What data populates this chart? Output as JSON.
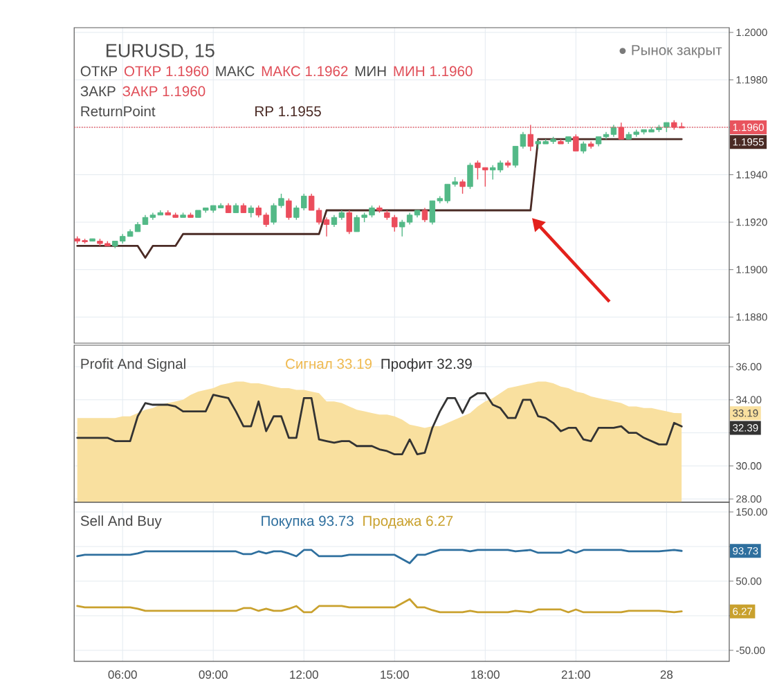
{
  "chart_data": [
    {
      "type": "candlestick",
      "title": "EURUSD, 15",
      "categories": [
        null,
        null,
        null,
        null,
        null,
        null,
        null,
        null,
        null,
        null,
        null,
        null,
        null,
        null,
        null,
        null,
        null,
        null,
        null,
        null,
        null,
        null,
        null,
        null,
        null,
        null,
        null,
        null,
        null,
        null,
        null,
        null,
        null,
        null,
        null,
        null,
        null,
        null,
        null,
        null,
        null,
        null,
        null,
        null,
        null,
        null,
        null,
        null,
        null,
        null,
        null,
        null,
        null,
        null,
        null,
        null,
        null,
        null,
        null,
        null,
        null,
        null,
        null,
        null,
        null,
        null,
        null,
        null,
        null,
        null,
        null,
        null,
        null,
        null,
        null,
        null,
        null,
        null,
        null,
        null,
        null
      ],
      "ohlc": [
        [
          1.1913,
          1.1914,
          1.1911,
          1.1912
        ],
        [
          1.1912,
          1.1913,
          1.1911,
          1.1912
        ],
        [
          1.1912,
          1.1913,
          1.1912,
          1.1913
        ],
        [
          1.1912,
          1.1913,
          1.191,
          1.1911
        ],
        [
          1.1911,
          1.1912,
          1.191,
          1.191
        ],
        [
          1.191,
          1.1912,
          1.1909,
          1.1912
        ],
        [
          1.1912,
          1.1915,
          1.1911,
          1.1914
        ],
        [
          1.1914,
          1.1917,
          1.1914,
          1.1916
        ],
        [
          1.1916,
          1.192,
          1.1916,
          1.1919
        ],
        [
          1.1919,
          1.1923,
          1.1919,
          1.1922
        ],
        [
          1.1922,
          1.1924,
          1.1921,
          1.1923
        ],
        [
          1.1923,
          1.1925,
          1.1923,
          1.1924
        ],
        [
          1.1924,
          1.1925,
          1.1923,
          1.1923
        ],
        [
          1.1923,
          1.1924,
          1.1922,
          1.1922
        ],
        [
          1.1922,
          1.1924,
          1.1922,
          1.1923
        ],
        [
          1.1923,
          1.1924,
          1.1922,
          1.1922
        ],
        [
          1.1922,
          1.1925,
          1.1922,
          1.1925
        ],
        [
          1.1925,
          1.1926,
          1.1924,
          1.1926
        ],
        [
          1.1925,
          1.1927,
          1.1924,
          1.1927
        ],
        [
          1.1926,
          1.1928,
          1.1926,
          1.1927
        ],
        [
          1.1927,
          1.1928,
          1.1924,
          1.1924
        ],
        [
          1.1924,
          1.1928,
          1.1924,
          1.1927
        ],
        [
          1.1927,
          1.1928,
          1.1924,
          1.1924
        ],
        [
          1.1924,
          1.1927,
          1.1922,
          1.1926
        ],
        [
          1.1926,
          1.1927,
          1.1922,
          1.1923
        ],
        [
          1.1923,
          1.1924,
          1.1918,
          1.1919
        ],
        [
          1.192,
          1.1928,
          1.1919,
          1.1927
        ],
        [
          1.1927,
          1.1932,
          1.1926,
          1.193
        ],
        [
          1.1929,
          1.193,
          1.1921,
          1.1922
        ],
        [
          1.1922,
          1.1927,
          1.1921,
          1.1926
        ],
        [
          1.1926,
          1.1932,
          1.1925,
          1.1931
        ],
        [
          1.1931,
          1.1932,
          1.1925,
          1.1925
        ],
        [
          1.1925,
          1.1926,
          1.1919,
          1.192
        ],
        [
          1.1921,
          1.1922,
          1.1914,
          1.1919
        ],
        [
          1.1919,
          1.1923,
          1.1918,
          1.1922
        ],
        [
          1.1922,
          1.1925,
          1.1921,
          1.1924
        ],
        [
          1.1924,
          1.1925,
          1.1915,
          1.1916
        ],
        [
          1.1916,
          1.1923,
          1.1916,
          1.1922
        ],
        [
          1.1922,
          1.1924,
          1.192,
          1.1923
        ],
        [
          1.1923,
          1.1927,
          1.1922,
          1.1926
        ],
        [
          1.1926,
          1.1927,
          1.1924,
          1.1925
        ],
        [
          1.1924,
          1.1925,
          1.1921,
          1.1922
        ],
        [
          1.1922,
          1.1923,
          1.1916,
          1.1918
        ],
        [
          1.1918,
          1.1921,
          1.1914,
          1.192
        ],
        [
          1.192,
          1.1924,
          1.1919,
          1.1923
        ],
        [
          1.1923,
          1.1925,
          1.1922,
          1.1925
        ],
        [
          1.1925,
          1.1926,
          1.192,
          1.1921
        ],
        [
          1.192,
          1.1929,
          1.1919,
          1.1929
        ],
        [
          1.1929,
          1.1931,
          1.1928,
          1.193
        ],
        [
          1.1929,
          1.1936,
          1.1928,
          1.1936
        ],
        [
          1.1936,
          1.1939,
          1.1935,
          1.1937
        ],
        [
          1.1937,
          1.1938,
          1.1932,
          1.1935
        ],
        [
          1.1935,
          1.1945,
          1.1934,
          1.1944
        ],
        [
          1.1945,
          1.1946,
          1.1938,
          1.1943
        ],
        [
          1.1943,
          1.1943,
          1.1935,
          1.1942
        ],
        [
          1.1942,
          1.1944,
          1.1938,
          1.1943
        ],
        [
          1.1942,
          1.1946,
          1.1941,
          1.1945
        ],
        [
          1.1945,
          1.1946,
          1.1943,
          1.1944
        ],
        [
          1.1944,
          1.1952,
          1.1943,
          1.1952
        ],
        [
          1.1952,
          1.1958,
          1.1951,
          1.1957
        ],
        [
          1.1957,
          1.1961,
          1.195,
          1.1952
        ],
        [
          1.1953,
          1.1955,
          1.1951,
          1.1954
        ],
        [
          1.1953,
          1.1955,
          1.1953,
          1.1954
        ],
        [
          1.1954,
          1.1956,
          1.1953,
          1.1955
        ],
        [
          1.1954,
          1.1955,
          1.1953,
          1.1953
        ],
        [
          1.1954,
          1.1956,
          1.1953,
          1.1956
        ],
        [
          1.1956,
          1.1957,
          1.195,
          1.195
        ],
        [
          1.195,
          1.1954,
          1.1949,
          1.1953
        ],
        [
          1.1953,
          1.1954,
          1.1951,
          1.1952
        ],
        [
          1.1953,
          1.1956,
          1.1952,
          1.1956
        ],
        [
          1.1956,
          1.1958,
          1.1955,
          1.1957
        ],
        [
          1.1957,
          1.1961,
          1.1956,
          1.196
        ],
        [
          1.196,
          1.1962,
          1.1955,
          1.1955
        ],
        [
          1.1955,
          1.1958,
          1.1955,
          1.1957
        ],
        [
          1.1957,
          1.1959,
          1.1956,
          1.1958
        ],
        [
          1.1958,
          1.1959,
          1.1957,
          1.1959
        ],
        [
          1.1958,
          1.196,
          1.1958,
          1.1959
        ],
        [
          1.1959,
          1.1961,
          1.1958,
          1.196
        ],
        [
          1.196,
          1.1962,
          1.1958,
          1.1962
        ],
        [
          1.1962,
          1.1963,
          1.1959,
          1.196
        ],
        [
          1.196,
          1.1962,
          1.196,
          1.196
        ]
      ],
      "colors": [
        "#eb4d5c",
        "#eb4d5c",
        "#53b987",
        "#eb4d5c",
        "#eb4d5c",
        "#53b987",
        "#53b987",
        "#53b987",
        "#53b987",
        "#53b987",
        "#53b987",
        "#53b987",
        "#eb4d5c",
        "#eb4d5c",
        "#53b987",
        "#eb4d5c",
        "#53b987",
        "#53b987",
        "#53b987",
        "#53b987",
        "#eb4d5c",
        "#53b987",
        "#eb4d5c",
        "#53b987",
        "#eb4d5c",
        "#eb4d5c",
        "#53b987",
        "#53b987",
        "#eb4d5c",
        "#53b987",
        "#53b987",
        "#eb4d5c",
        "#eb4d5c",
        "#eb4d5c",
        "#53b987",
        "#53b987",
        "#eb4d5c",
        "#53b987",
        "#53b987",
        "#53b987",
        "#eb4d5c",
        "#eb4d5c",
        "#eb4d5c",
        "#53b987",
        "#53b987",
        "#53b987",
        "#eb4d5c",
        "#53b987",
        "#53b987",
        "#53b987",
        "#53b987",
        "#eb4d5c",
        "#53b987",
        "#eb4d5c",
        "#eb4d5c",
        "#53b987",
        "#53b987",
        "#eb4d5c",
        "#53b987",
        "#53b987",
        "#eb4d5c",
        "#53b987",
        "#53b987",
        "#53b987",
        "#eb4d5c",
        "#53b987",
        "#eb4d5c",
        "#53b987",
        "#eb4d5c",
        "#53b987",
        "#53b987",
        "#53b987",
        "#eb4d5c",
        "#53b987",
        "#53b987",
        "#53b987",
        "#53b987",
        "#53b987",
        "#53b987",
        "#eb4d5c",
        "#eb4d5c"
      ],
      "series": [
        {
          "type": "line",
          "name": "RP 1.1955",
          "color": "#4a2a24",
          "values": [
            1.191,
            1.191,
            1.191,
            1.191,
            1.191,
            1.191,
            1.191,
            1.191,
            1.191,
            1.1905,
            1.191,
            1.191,
            1.191,
            1.191,
            1.1915,
            1.1915,
            1.1915,
            1.1915,
            1.1915,
            1.1915,
            1.1915,
            1.1915,
            1.1915,
            1.1915,
            1.1915,
            1.1915,
            1.1915,
            1.1915,
            1.1915,
            1.1915,
            1.1915,
            1.1915,
            1.1915,
            1.1925,
            1.1925,
            1.1925,
            1.1925,
            1.1925,
            1.1925,
            1.1925,
            1.1925,
            1.1925,
            1.1925,
            1.1925,
            1.1925,
            1.1925,
            1.1925,
            1.1925,
            1.1925,
            1.1925,
            1.1925,
            1.1925,
            1.1925,
            1.1925,
            1.1925,
            1.1925,
            1.1925,
            1.1925,
            1.1925,
            1.1925,
            1.1925,
            1.1955,
            1.1955,
            1.1955,
            1.1955,
            1.1955,
            1.1955,
            1.1955,
            1.1955,
            1.1955,
            1.1955,
            1.1955,
            1.1955,
            1.1955,
            1.1955,
            1.1955,
            1.1955,
            1.1955,
            1.1955,
            1.1955,
            1.1955
          ]
        }
      ],
      "ylim": [
        1.1869,
        1.2002
      ],
      "yticks": [
        {
          "value": 1.188,
          "label": "1.1880"
        },
        {
          "value": 1.19,
          "label": "1.1900"
        },
        {
          "value": 1.192,
          "label": "1.1920"
        },
        {
          "value": 1.194,
          "label": "1.1940"
        },
        {
          "value": 1.196,
          "label": null
        },
        {
          "value": 1.198,
          "label": "1.1980"
        },
        {
          "value": 1.2,
          "label": "1.2000"
        }
      ],
      "grid": true,
      "legend": "top left",
      "ref_lines": [
        {
          "axis": "y",
          "value": 1.196,
          "color": "#e8545e",
          "line_style": "dotted"
        }
      ],
      "annotations": [
        "● Рынок закрыт",
        "ОТКР",
        "ОТКР 1.1960",
        "МАКС",
        "МАКС 1.1962",
        "МИН",
        "МИН 1.1960",
        "ЗАКР",
        "ЗАКР 1.1960",
        "ReturnPoint",
        "1.1960",
        "1.1955"
      ]
    },
    {
      "type": "line",
      "title": "Profit And Signal",
      "categories": [
        null,
        null,
        null,
        null,
        null,
        null,
        null,
        null,
        null,
        null,
        null,
        null,
        null,
        null,
        null,
        null,
        null,
        null,
        null,
        null,
        null,
        null,
        null,
        null,
        null,
        null,
        null,
        null,
        null,
        null,
        null,
        null,
        null,
        null,
        null,
        null,
        null,
        null,
        null,
        null,
        null,
        null,
        null,
        null,
        null,
        null,
        null,
        null,
        null,
        null,
        null,
        null,
        null,
        null,
        null,
        null,
        null,
        null,
        null,
        null,
        null,
        null,
        null,
        null,
        null,
        null,
        null,
        null,
        null,
        null,
        null,
        null,
        null,
        null,
        null,
        null,
        null,
        null,
        null,
        null,
        null
      ],
      "series": [
        {
          "type": "area",
          "name": "Сигнал 33.19",
          "color": "#f9e09f",
          "values": [
            32.9,
            32.9,
            32.9,
            32.9,
            32.9,
            32.9,
            33.0,
            33.0,
            33.2,
            33.4,
            33.5,
            33.7,
            33.8,
            33.9,
            34.0,
            34.3,
            34.5,
            34.6,
            34.7,
            34.9,
            35.0,
            35.1,
            35.1,
            35.0,
            35.0,
            34.9,
            34.8,
            34.7,
            34.7,
            34.6,
            34.6,
            34.5,
            34.4,
            33.9,
            33.9,
            33.8,
            33.6,
            33.4,
            33.3,
            33.2,
            33.1,
            33.1,
            33.0,
            32.8,
            32.5,
            32.4,
            32.3,
            32.4,
            32.4,
            32.6,
            32.8,
            33.0,
            33.2,
            33.6,
            33.9,
            34.1,
            34.4,
            34.7,
            34.8,
            34.9,
            35.0,
            35.1,
            35.1,
            35.0,
            34.8,
            34.7,
            34.5,
            34.4,
            34.2,
            34.1,
            34.0,
            33.9,
            33.8,
            33.6,
            33.6,
            33.5,
            33.5,
            33.4,
            33.3,
            33.2,
            33.19
          ]
        },
        {
          "type": "line",
          "name": "Профит 32.39",
          "color": "#333333",
          "values": [
            31.7,
            31.7,
            31.7,
            31.7,
            31.7,
            31.5,
            31.5,
            31.5,
            33.0,
            33.8,
            33.7,
            33.7,
            33.7,
            33.6,
            33.3,
            33.3,
            33.3,
            33.3,
            34.3,
            34.2,
            34.1,
            33.3,
            32.4,
            32.4,
            33.9,
            32.1,
            33.0,
            33.0,
            31.7,
            31.7,
            34.1,
            34.1,
            31.6,
            31.5,
            31.4,
            31.5,
            31.5,
            31.2,
            31.2,
            31.2,
            31.0,
            30.9,
            30.7,
            30.7,
            31.6,
            30.7,
            30.8,
            32.3,
            33.3,
            34.1,
            34.1,
            33.2,
            34.1,
            34.4,
            34.4,
            33.7,
            33.5,
            32.9,
            32.9,
            34.0,
            34.0,
            33.0,
            32.9,
            32.6,
            32.1,
            32.3,
            32.3,
            31.6,
            31.5,
            32.3,
            32.3,
            32.3,
            32.4,
            32.0,
            32.0,
            31.7,
            31.5,
            31.3,
            31.3,
            32.6,
            32.39
          ]
        }
      ],
      "ylim": [
        27.8,
        37.3
      ],
      "yticks": [
        {
          "value": 28,
          "label": "28.00"
        },
        {
          "value": 30,
          "label": "30.00"
        },
        {
          "value": 32,
          "label": null
        },
        {
          "value": 34,
          "label": "34.00"
        },
        {
          "value": 36,
          "label": "36.00"
        }
      ],
      "grid": true,
      "legend": "top left",
      "annotations": [
        "33.19",
        "32.39"
      ]
    },
    {
      "type": "line",
      "title": "Sell And Buy",
      "categories": [
        null,
        null,
        null,
        null,
        null,
        null,
        "06:00",
        null,
        null,
        null,
        null,
        null,
        null,
        null,
        null,
        null,
        null,
        null,
        "09:00",
        null,
        null,
        null,
        null,
        null,
        null,
        null,
        null,
        null,
        null,
        null,
        "12:00",
        null,
        null,
        null,
        null,
        null,
        null,
        null,
        null,
        null,
        null,
        null,
        "15:00",
        null,
        null,
        null,
        null,
        null,
        null,
        null,
        null,
        null,
        null,
        null,
        "18:00",
        null,
        null,
        null,
        null,
        null,
        null,
        null,
        null,
        null,
        null,
        null,
        "21:00",
        null,
        null,
        null,
        null,
        null,
        null,
        null,
        null,
        null,
        null,
        null,
        "28",
        null,
        null
      ],
      "series": [
        {
          "name": "Покупка 93.73",
          "color": "#2e6f9e",
          "values": [
            86,
            88,
            88,
            88,
            88,
            88,
            88,
            88,
            90,
            93,
            93,
            93,
            93,
            93,
            93,
            93,
            93,
            93,
            93,
            93,
            93,
            93,
            89,
            89,
            93,
            90,
            93,
            93,
            90,
            86,
            95,
            95,
            86,
            86,
            86,
            86,
            88,
            88,
            88,
            88,
            88,
            88,
            88,
            82,
            76,
            88,
            88,
            92,
            95,
            95,
            95,
            95,
            93,
            95,
            95,
            95,
            95,
            95,
            93,
            94,
            95,
            91,
            91,
            91,
            91,
            95,
            91,
            95,
            95,
            95,
            95,
            95,
            95,
            93,
            93,
            93,
            93,
            93,
            94,
            95,
            93.73
          ]
        },
        {
          "name": "Продажа 6.27",
          "color": "#c9a12e",
          "values": [
            14,
            12,
            12,
            12,
            12,
            12,
            12,
            12,
            10,
            7,
            7,
            7,
            7,
            7,
            7,
            7,
            7,
            7,
            7,
            7,
            7,
            7,
            11,
            11,
            7,
            10,
            7,
            7,
            10,
            14,
            5,
            5,
            14,
            14,
            14,
            14,
            12,
            12,
            12,
            12,
            12,
            12,
            12,
            18,
            24,
            12,
            12,
            8,
            5,
            5,
            5,
            5,
            7,
            5,
            5,
            5,
            5,
            5,
            7,
            6,
            5,
            9,
            9,
            9,
            9,
            5,
            9,
            5,
            5,
            5,
            5,
            5,
            5,
            7,
            7,
            7,
            7,
            7,
            6,
            5,
            6.27
          ]
        }
      ],
      "ylim": [
        -66,
        164
      ],
      "yticks": [
        {
          "value": -50,
          "label": "-50.00"
        },
        {
          "value": 0,
          "label": null
        },
        {
          "value": 50,
          "label": "50.00"
        },
        {
          "value": 100,
          "label": null
        },
        {
          "value": 150,
          "label": "150.00"
        }
      ],
      "grid": true,
      "legend": "top left",
      "annotations": [
        "93.73",
        "6.27"
      ]
    }
  ]
}
